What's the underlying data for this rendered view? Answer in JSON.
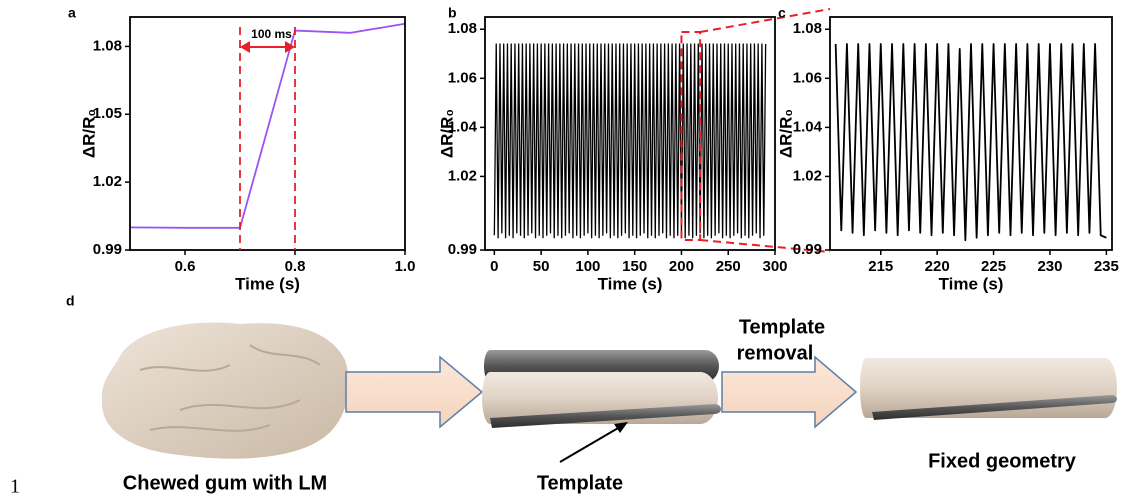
{
  "chart_data": [
    {
      "type": "line",
      "letter": "a",
      "xlabel": "Time (s)",
      "ylabel": "ΔR/R₀",
      "color": "#9a55f0",
      "x": [
        0.5,
        0.6,
        0.7,
        0.8,
        0.9,
        1.0
      ],
      "values": [
        1.0,
        0.9998,
        0.9998,
        1.087,
        1.086,
        1.09
      ],
      "xlim": [
        0.5,
        1.0
      ],
      "xticks": [
        0.6,
        0.8,
        {
          "value": 1,
          "label": "1.0"
        }
      ],
      "ylim": [
        0.99,
        1.093
      ],
      "yticks": [
        0.99,
        1.02,
        1.05,
        1.08
      ],
      "vlines": [
        0.7,
        0.8
      ],
      "vline_color": "#e8202a",
      "annotation": "100 ms"
    },
    {
      "type": "line",
      "letter": "b",
      "xlabel": "Time (s)",
      "ylabel": "ΔR/R₀",
      "color": "#000000",
      "x": [
        0,
        2,
        4,
        6,
        8,
        10,
        12,
        14,
        16,
        18,
        20,
        22,
        24,
        26,
        28,
        30,
        32,
        34,
        36,
        38,
        40,
        42,
        44,
        46,
        48,
        50,
        52,
        54,
        56,
        58,
        60,
        62,
        64,
        66,
        68,
        70,
        72,
        74,
        76,
        78,
        80,
        82,
        84,
        86,
        88,
        90,
        92,
        94,
        96,
        98,
        100,
        102,
        104,
        106,
        108,
        110,
        112,
        114,
        116,
        118,
        120,
        122,
        124,
        126,
        128,
        130,
        132,
        134,
        136,
        138,
        140,
        142,
        144,
        146,
        148,
        150,
        152,
        154,
        156,
        158,
        160,
        162,
        164,
        166,
        168,
        170,
        172,
        174,
        176,
        178,
        180,
        182,
        184,
        186,
        188,
        190,
        192,
        194,
        196,
        198,
        200,
        202,
        204,
        206,
        208,
        210,
        212,
        214,
        216,
        218,
        220,
        222,
        224,
        226,
        228,
        230,
        232,
        234,
        236,
        238,
        240,
        242,
        244,
        246,
        248,
        250,
        252,
        254,
        256,
        258,
        260,
        262,
        264,
        266,
        268,
        270,
        272,
        274,
        276,
        278,
        280,
        282,
        284,
        286,
        288,
        290
      ],
      "values": [
        0.996,
        1.074,
        0.995,
        1.074,
        0.997,
        1.074,
        0.995,
        1.074,
        0.996,
        1.074,
        0.995,
        1.074,
        0.997,
        1.074,
        0.996,
        1.074,
        0.995,
        1.074,
        0.996,
        1.074,
        0.997,
        1.074,
        0.995,
        1.074,
        0.996,
        1.074,
        0.995,
        1.074,
        0.996,
        1.074,
        0.997,
        1.074,
        0.995,
        1.074,
        0.996,
        1.074,
        0.995,
        1.074,
        0.996,
        1.074,
        0.997,
        1.074,
        0.995,
        1.074,
        0.996,
        1.074,
        0.995,
        1.074,
        0.996,
        1.074,
        0.997,
        1.074,
        0.995,
        1.074,
        0.996,
        1.074,
        0.995,
        1.074,
        0.996,
        1.074,
        0.997,
        1.074,
        0.995,
        1.074,
        0.996,
        1.074,
        0.995,
        1.074,
        0.996,
        1.074,
        0.997,
        1.074,
        0.995,
        1.074,
        0.996,
        1.074,
        0.995,
        1.074,
        0.996,
        1.074,
        0.997,
        1.074,
        0.995,
        1.074,
        0.996,
        1.074,
        0.995,
        1.074,
        0.996,
        1.074,
        0.997,
        1.074,
        0.995,
        1.074,
        0.996,
        1.074,
        0.995,
        1.074,
        0.996,
        1.074,
        0.997,
        1.074,
        0.995,
        1.074,
        0.996,
        1.074,
        0.995,
        1.074,
        0.996,
        1.074,
        0.997,
        1.074,
        0.995,
        1.074,
        0.996,
        1.074,
        0.995,
        1.074,
        0.996,
        1.074,
        0.997,
        1.074,
        0.995,
        1.074,
        0.996,
        1.074,
        0.995,
        1.074,
        0.996,
        1.074,
        0.997,
        1.074,
        0.995,
        1.074,
        0.996,
        1.074,
        0.995,
        1.074,
        0.996,
        1.074,
        0.997,
        1.074,
        0.995,
        1.074,
        0.996,
        1.074
      ],
      "xlim": [
        -10,
        300
      ],
      "xticks": [
        0,
        50,
        100,
        150,
        200,
        250,
        300
      ],
      "ylim": [
        0.99,
        1.085
      ],
      "yticks": [
        0.99,
        1.02,
        1.04,
        1.06,
        1.08
      ],
      "highlight": [
        200,
        220
      ],
      "highlight_color": "#e8202a"
    },
    {
      "type": "line",
      "letter": "c",
      "xlabel": "Time (s)",
      "ylabel": "ΔR/R₀",
      "color": "#000000",
      "x": [
        211,
        211.5,
        212,
        212.5,
        213,
        213.5,
        214,
        214.5,
        215,
        215.5,
        216,
        216.5,
        217,
        217.5,
        218,
        218.5,
        219,
        219.5,
        220,
        220.5,
        221,
        221.5,
        222,
        222.5,
        223,
        223.5,
        224,
        224.5,
        225,
        225.5,
        226,
        226.5,
        227,
        227.5,
        228,
        228.5,
        229,
        229.5,
        230,
        230.5,
        231,
        231.5,
        232,
        232.5,
        233,
        233.5,
        234,
        234.5,
        235
      ],
      "values": [
        1.074,
        0.998,
        1.074,
        0.997,
        1.074,
        0.996,
        1.074,
        0.998,
        1.074,
        0.997,
        1.074,
        0.996,
        1.074,
        0.998,
        1.074,
        0.997,
        1.074,
        0.996,
        1.074,
        0.997,
        1.074,
        0.996,
        1.072,
        0.994,
        1.074,
        0.995,
        1.074,
        0.996,
        1.074,
        0.997,
        1.074,
        0.996,
        1.074,
        0.997,
        1.074,
        0.996,
        1.074,
        0.997,
        1.074,
        0.996,
        1.074,
        0.997,
        1.074,
        0.996,
        1.074,
        0.997,
        1.074,
        0.996,
        0.995
      ],
      "xlim": [
        210.5,
        235.5
      ],
      "xticks": [
        215,
        220,
        225,
        230,
        235
      ],
      "ylim": [
        0.99,
        1.085
      ],
      "yticks": [
        0.99,
        1.02,
        1.04,
        1.06,
        1.08
      ]
    }
  ],
  "diagram": {
    "letter": "d",
    "page_number": "1",
    "gum_label": "Chewed gum with LM",
    "template_label": "Template",
    "removal_label": [
      "Template",
      "removal"
    ],
    "result_label": "Fixed geometry"
  }
}
